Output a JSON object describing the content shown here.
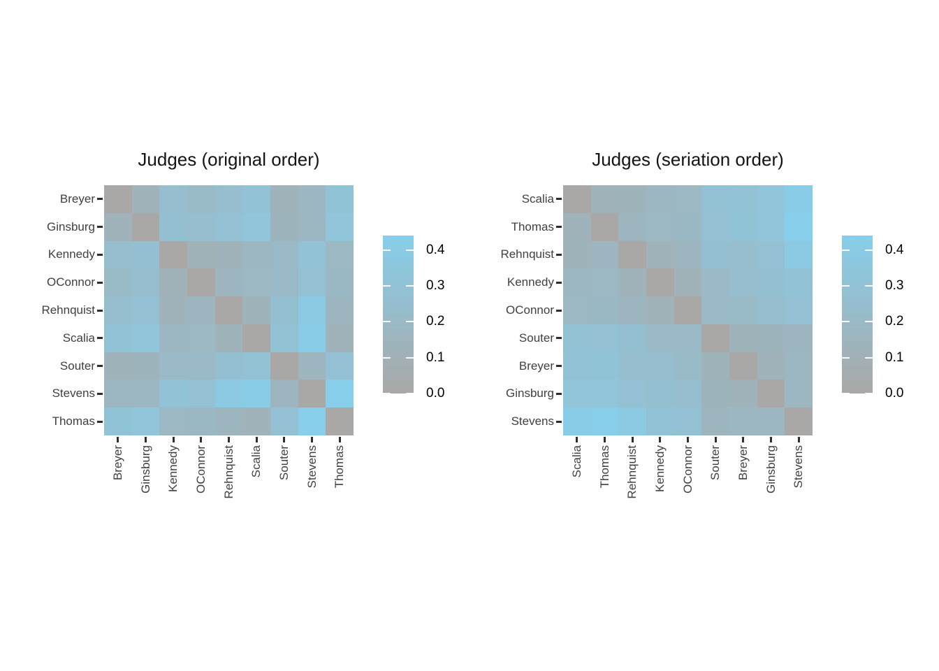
{
  "page": {
    "background": "#ffffff"
  },
  "chart_data": {
    "type": "heatmap",
    "description": "Two dissimilarity matrix images of Supreme Court judges, original order vs seriation order",
    "judges": [
      "Breyer",
      "Ginsburg",
      "Kennedy",
      "OConnor",
      "Rehnquist",
      "Scalia",
      "Souter",
      "Stevens",
      "Thomas"
    ],
    "dissimilarity_matrix": [
      [
        0.0,
        0.12,
        0.25,
        0.21,
        0.25,
        0.3,
        0.13,
        0.17,
        0.31
      ],
      [
        0.12,
        0.0,
        0.27,
        0.25,
        0.28,
        0.33,
        0.14,
        0.17,
        0.33
      ],
      [
        0.25,
        0.27,
        0.0,
        0.11,
        0.12,
        0.17,
        0.2,
        0.3,
        0.18
      ],
      [
        0.21,
        0.25,
        0.11,
        0.0,
        0.15,
        0.18,
        0.2,
        0.28,
        0.19
      ],
      [
        0.25,
        0.28,
        0.12,
        0.15,
        0.0,
        0.13,
        0.27,
        0.38,
        0.15
      ],
      [
        0.3,
        0.33,
        0.17,
        0.18,
        0.13,
        0.0,
        0.29,
        0.42,
        0.12
      ],
      [
        0.13,
        0.14,
        0.2,
        0.2,
        0.27,
        0.29,
        0.0,
        0.15,
        0.28
      ],
      [
        0.17,
        0.17,
        0.3,
        0.28,
        0.38,
        0.42,
        0.15,
        0.0,
        0.44
      ],
      [
        0.31,
        0.33,
        0.18,
        0.19,
        0.15,
        0.12,
        0.28,
        0.44,
        0.0
      ]
    ],
    "panels": [
      {
        "title": "Judges (original order)",
        "order": [
          "Breyer",
          "Ginsburg",
          "Kennedy",
          "OConnor",
          "Rehnquist",
          "Scalia",
          "Souter",
          "Stevens",
          "Thomas"
        ]
      },
      {
        "title": "Judges (seriation order)",
        "order": [
          "Scalia",
          "Thomas",
          "Rehnquist",
          "Kennedy",
          "OConnor",
          "Souter",
          "Breyer",
          "Ginsburg",
          "Stevens"
        ]
      }
    ],
    "colorscale": {
      "domain": [
        0.0,
        0.44
      ],
      "low_color": "#a9a8a7",
      "high_color": "#87ceeb",
      "legend_ticks": [
        "0.4",
        "0.3",
        "0.2",
        "0.1",
        "0.0"
      ]
    },
    "layout": {
      "grid": false,
      "x_label_rotation": -90,
      "legend_position": "right"
    }
  }
}
